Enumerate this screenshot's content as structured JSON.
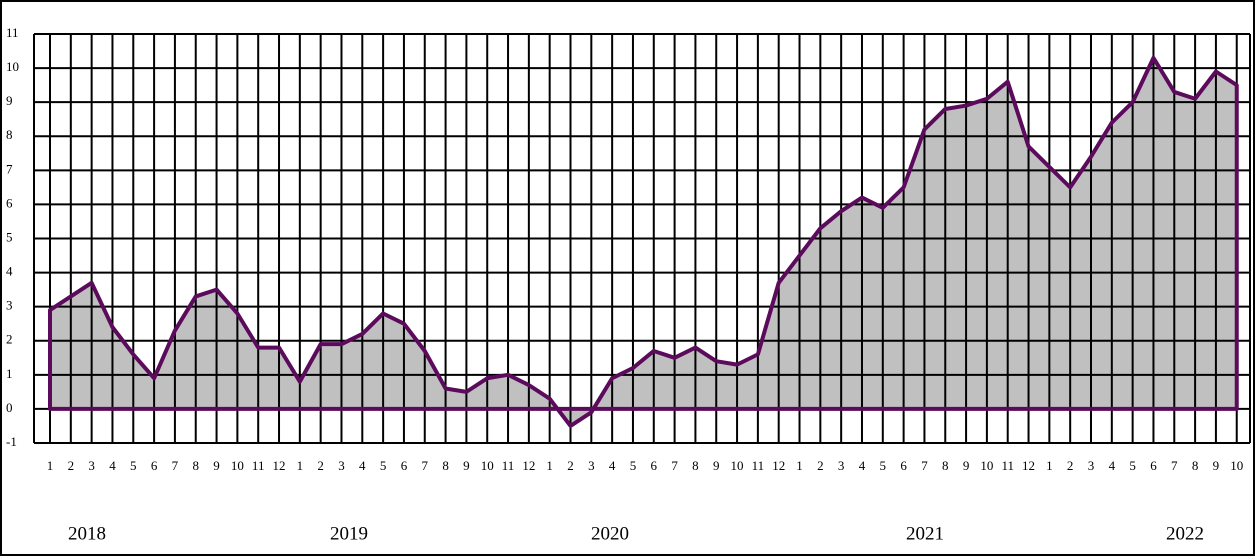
{
  "chart_data": {
    "type": "area",
    "x": [
      "1",
      "2",
      "3",
      "4",
      "5",
      "6",
      "7",
      "8",
      "9",
      "10",
      "11",
      "12",
      "1",
      "2",
      "3",
      "4",
      "5",
      "6",
      "7",
      "8",
      "9",
      "10",
      "11",
      "12",
      "1",
      "2",
      "3",
      "4",
      "5",
      "6",
      "7",
      "8",
      "9",
      "10",
      "11",
      "12",
      "1",
      "2",
      "3",
      "4",
      "5",
      "6",
      "7",
      "8",
      "9",
      "10",
      "11",
      "12",
      "1",
      "2",
      "3",
      "4",
      "5",
      "6",
      "7",
      "8",
      "9",
      "10"
    ],
    "values": [
      2.9,
      3.3,
      3.7,
      2.4,
      1.6,
      0.9,
      2.3,
      3.3,
      3.5,
      2.8,
      1.8,
      1.8,
      0.8,
      1.9,
      1.9,
      2.2,
      2.8,
      2.5,
      1.7,
      0.6,
      0.5,
      0.9,
      1.0,
      0.7,
      0.3,
      -0.5,
      -0.1,
      0.9,
      1.2,
      1.7,
      1.5,
      1.8,
      1.4,
      1.3,
      1.6,
      3.7,
      4.5,
      5.3,
      5.8,
      6.2,
      5.9,
      6.5,
      8.2,
      8.8,
      8.9,
      9.1,
      9.6,
      7.7,
      7.1,
      6.5,
      7.4,
      8.4,
      9.0,
      10.3,
      9.3,
      9.1,
      9.9,
      9.5
    ],
    "year_labels": [
      "2018",
      "2019",
      "2020",
      "2021",
      "2022"
    ],
    "color": "#c0c0c0",
    "line_color": "#5c0a5c",
    "ylim": [
      -1,
      11
    ],
    "yticks": [
      -1,
      0,
      1,
      2,
      3,
      4,
      5,
      6,
      7,
      8,
      9,
      10,
      11
    ],
    "grid": true
  }
}
